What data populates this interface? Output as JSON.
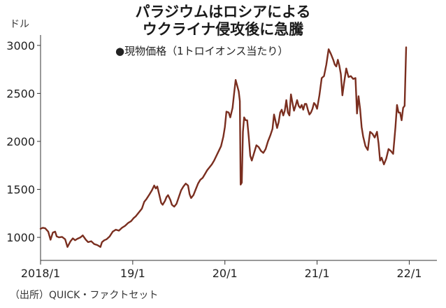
{
  "title_lines": [
    "パラジウムはロシアによる",
    "ウクライナ侵攻後に急騰"
  ],
  "subtitle": "●現物価格（1トロイオンス当たり）",
  "source": "（出所）QUICK・ファクトセット",
  "chart_data": {
    "type": "line",
    "unit_label": "ドル",
    "ylim": [
      760,
      3050
    ],
    "xlim": [
      0,
      51.6
    ],
    "y_ticks": [
      1000,
      1500,
      2000,
      2500,
      3000
    ],
    "x_ticks": [
      {
        "label": "2018/1",
        "x": 0
      },
      {
        "label": "19/1",
        "x": 12
      },
      {
        "label": "20/1",
        "x": 24
      },
      {
        "label": "21/1",
        "x": 36
      },
      {
        "label": "22/1",
        "x": 48
      }
    ],
    "series_color": "#7a2e1f",
    "series": [
      {
        "name": "",
        "points": [
          [
            0,
            1090
          ],
          [
            0.3,
            1100
          ],
          [
            0.6,
            1095
          ],
          [
            1.0,
            1060
          ],
          [
            1.3,
            975
          ],
          [
            1.6,
            1050
          ],
          [
            1.9,
            1060
          ],
          [
            2.1,
            1010
          ],
          [
            2.4,
            1000
          ],
          [
            2.8,
            1005
          ],
          [
            3.2,
            980
          ],
          [
            3.5,
            900
          ],
          [
            3.9,
            960
          ],
          [
            4.2,
            990
          ],
          [
            4.5,
            970
          ],
          [
            4.8,
            985
          ],
          [
            5.2,
            1000
          ],
          [
            5.5,
            1020
          ],
          [
            5.9,
            975
          ],
          [
            6.2,
            950
          ],
          [
            6.6,
            960
          ],
          [
            7.0,
            930
          ],
          [
            7.4,
            920
          ],
          [
            7.8,
            900
          ],
          [
            8.0,
            950
          ],
          [
            8.3,
            970
          ],
          [
            8.6,
            980
          ],
          [
            9.0,
            1010
          ],
          [
            9.4,
            1060
          ],
          [
            9.8,
            1080
          ],
          [
            10.2,
            1070
          ],
          [
            10.6,
            1100
          ],
          [
            11.0,
            1120
          ],
          [
            11.4,
            1150
          ],
          [
            11.8,
            1170
          ],
          [
            12.1,
            1200
          ],
          [
            12.4,
            1220
          ],
          [
            12.8,
            1260
          ],
          [
            13.2,
            1300
          ],
          [
            13.5,
            1370
          ],
          [
            13.8,
            1400
          ],
          [
            14.2,
            1450
          ],
          [
            14.5,
            1490
          ],
          [
            14.8,
            1540
          ],
          [
            15.0,
            1510
          ],
          [
            15.2,
            1530
          ],
          [
            15.5,
            1430
          ],
          [
            15.7,
            1360
          ],
          [
            15.9,
            1340
          ],
          [
            16.2,
            1380
          ],
          [
            16.4,
            1420
          ],
          [
            16.6,
            1440
          ],
          [
            16.9,
            1390
          ],
          [
            17.1,
            1340
          ],
          [
            17.4,
            1320
          ],
          [
            17.7,
            1350
          ],
          [
            18.0,
            1420
          ],
          [
            18.3,
            1490
          ],
          [
            18.6,
            1530
          ],
          [
            18.9,
            1560
          ],
          [
            19.2,
            1540
          ],
          [
            19.4,
            1450
          ],
          [
            19.6,
            1410
          ],
          [
            19.9,
            1440
          ],
          [
            20.2,
            1500
          ],
          [
            20.5,
            1560
          ],
          [
            20.8,
            1600
          ],
          [
            21.1,
            1620
          ],
          [
            21.4,
            1660
          ],
          [
            21.7,
            1700
          ],
          [
            22.0,
            1730
          ],
          [
            22.3,
            1760
          ],
          [
            22.6,
            1800
          ],
          [
            22.9,
            1850
          ],
          [
            23.2,
            1900
          ],
          [
            23.5,
            1950
          ],
          [
            23.8,
            2050
          ],
          [
            24.0,
            2150
          ],
          [
            24.2,
            2310
          ],
          [
            24.5,
            2300
          ],
          [
            24.7,
            2250
          ],
          [
            25.0,
            2350
          ],
          [
            25.2,
            2500
          ],
          [
            25.4,
            2640
          ],
          [
            25.6,
            2580
          ],
          [
            25.8,
            2520
          ],
          [
            25.95,
            2420
          ],
          [
            26.05,
            1550
          ],
          [
            26.2,
            1570
          ],
          [
            26.35,
            2100
          ],
          [
            26.5,
            2250
          ],
          [
            26.7,
            2220
          ],
          [
            26.9,
            2220
          ],
          [
            27.1,
            2050
          ],
          [
            27.3,
            1850
          ],
          [
            27.5,
            1800
          ],
          [
            27.8,
            1880
          ],
          [
            28.1,
            1960
          ],
          [
            28.4,
            1940
          ],
          [
            28.7,
            1900
          ],
          [
            29.0,
            1880
          ],
          [
            29.3,
            1920
          ],
          [
            29.6,
            2000
          ],
          [
            29.9,
            2060
          ],
          [
            30.2,
            2130
          ],
          [
            30.4,
            2280
          ],
          [
            30.6,
            2210
          ],
          [
            30.8,
            2140
          ],
          [
            31.0,
            2200
          ],
          [
            31.2,
            2300
          ],
          [
            31.4,
            2330
          ],
          [
            31.6,
            2270
          ],
          [
            31.8,
            2320
          ],
          [
            32.0,
            2430
          ],
          [
            32.2,
            2300
          ],
          [
            32.4,
            2270
          ],
          [
            32.6,
            2490
          ],
          [
            32.8,
            2400
          ],
          [
            33.0,
            2320
          ],
          [
            33.2,
            2370
          ],
          [
            33.4,
            2430
          ],
          [
            33.6,
            2370
          ],
          [
            33.8,
            2350
          ],
          [
            34.0,
            2380
          ],
          [
            34.2,
            2330
          ],
          [
            34.4,
            2390
          ],
          [
            34.6,
            2390
          ],
          [
            34.8,
            2330
          ],
          [
            35.0,
            2280
          ],
          [
            35.2,
            2300
          ],
          [
            35.4,
            2340
          ],
          [
            35.6,
            2400
          ],
          [
            35.8,
            2380
          ],
          [
            36.0,
            2340
          ],
          [
            36.3,
            2480
          ],
          [
            36.6,
            2660
          ],
          [
            36.9,
            2680
          ],
          [
            37.2,
            2800
          ],
          [
            37.5,
            2960
          ],
          [
            37.8,
            2910
          ],
          [
            38.1,
            2850
          ],
          [
            38.3,
            2800
          ],
          [
            38.5,
            2780
          ],
          [
            38.7,
            2850
          ],
          [
            38.9,
            2790
          ],
          [
            39.1,
            2700
          ],
          [
            39.3,
            2480
          ],
          [
            39.5,
            2600
          ],
          [
            39.8,
            2760
          ],
          [
            40.1,
            2670
          ],
          [
            40.4,
            2680
          ],
          [
            40.7,
            2650
          ],
          [
            41.0,
            2660
          ],
          [
            41.2,
            2290
          ],
          [
            41.4,
            2470
          ],
          [
            41.6,
            2340
          ],
          [
            41.8,
            2150
          ],
          [
            42.0,
            2050
          ],
          [
            42.3,
            1950
          ],
          [
            42.6,
            1910
          ],
          [
            42.9,
            2100
          ],
          [
            43.2,
            2080
          ],
          [
            43.5,
            2040
          ],
          [
            43.8,
            2100
          ],
          [
            44.0,
            1980
          ],
          [
            44.2,
            1800
          ],
          [
            44.4,
            1830
          ],
          [
            44.7,
            1760
          ],
          [
            45.0,
            1820
          ],
          [
            45.3,
            1920
          ],
          [
            45.6,
            1900
          ],
          [
            45.9,
            1870
          ],
          [
            46.2,
            2150
          ],
          [
            46.4,
            2380
          ],
          [
            46.6,
            2300
          ],
          [
            46.8,
            2300
          ],
          [
            47.0,
            2220
          ],
          [
            47.2,
            2350
          ],
          [
            47.4,
            2370
          ],
          [
            47.6,
            2980
          ]
        ]
      }
    ]
  }
}
